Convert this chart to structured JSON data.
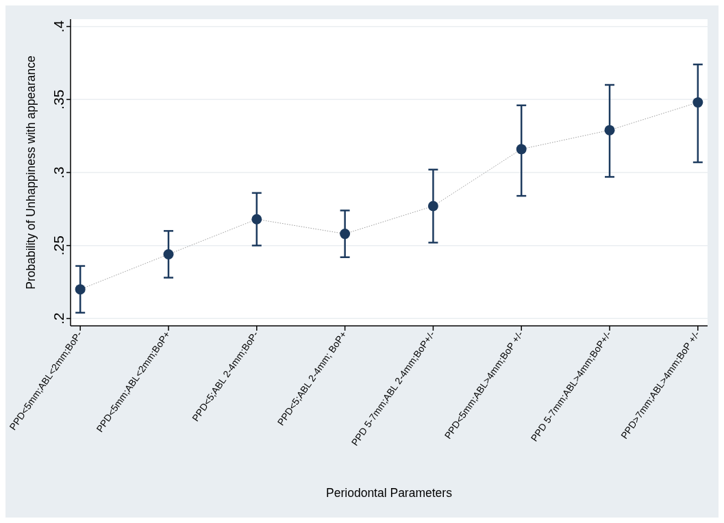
{
  "chart_data": {
    "type": "line",
    "xlabel": "Periodontal Parameters",
    "ylabel": "Probability of Unhappiness with appearance",
    "categories": [
      "PPD<5mm;ABL<2mm;BoP-",
      "PPD<5mm;ABL<2mm;BoP+",
      "PPD<5;ABL 2-4mm;BoP-",
      "PPD<5;ABL 2-4mm; BoP+",
      "PPD 5-7mm;ABL 2-4mm;BoP+/-",
      "PPD<5mm;ABL>4mm;BoP +/-",
      "PPD 5-7mm;ABL>4mm;BoP+/-",
      "PPD>7mm;ABL>4mm;BoP +/-"
    ],
    "series": [
      {
        "type": "line",
        "color": "#9a9a9a",
        "line_style": "dotted",
        "marker": "none",
        "values": [
          0.22,
          0.244,
          0.268,
          0.258,
          0.277,
          0.316,
          0.329,
          0.348
        ]
      },
      {
        "type": "scatter",
        "color": "#1c3a5e",
        "marker": "circle",
        "values": [
          0.22,
          0.244,
          0.268,
          0.258,
          0.277,
          0.316,
          0.329,
          0.348
        ],
        "errors": [
          [
            0.204,
            0.236
          ],
          [
            0.228,
            0.26
          ],
          [
            0.25,
            0.286
          ],
          [
            0.242,
            0.274
          ],
          [
            0.252,
            0.302
          ],
          [
            0.284,
            0.346
          ],
          [
            0.297,
            0.36
          ],
          [
            0.307,
            0.374
          ]
        ]
      }
    ],
    "ylim": [
      0.195,
      0.405
    ],
    "yticks": [
      {
        "value": 0.2,
        "label": ".2"
      },
      {
        "value": 0.25,
        "label": ".25"
      },
      {
        "value": 0.3,
        "label": ".3"
      },
      {
        "value": 0.35,
        "label": ".35"
      },
      {
        "value": 0.4,
        "label": ".4"
      }
    ],
    "grid": "y"
  }
}
